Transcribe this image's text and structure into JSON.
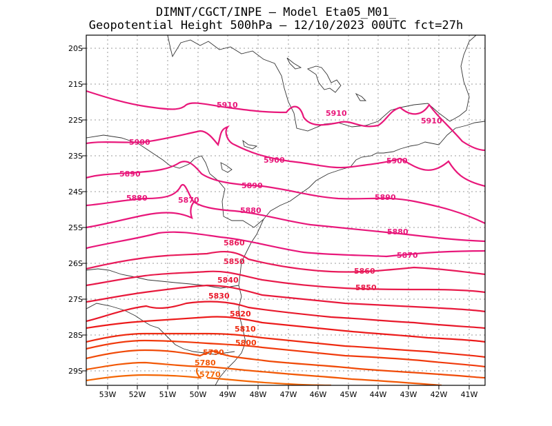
{
  "header": {
    "line1": "DIMNT/CGCT/INPE –  Model Eta05_M01_",
    "line2": "Geopotential Height 500hPa –  12/10/2023 00UTC fct=27h"
  },
  "map": {
    "lat_labels": [
      "20S",
      "21S",
      "22S",
      "23S",
      "24S",
      "25S",
      "26S",
      "27S",
      "28S",
      "29S"
    ],
    "lon_labels": [
      "53W",
      "52W",
      "51W",
      "50W",
      "49W",
      "48W",
      "47W",
      "46W",
      "45W",
      "44W",
      "43W",
      "42W",
      "41W"
    ],
    "contour_labels": [
      {
        "text": "5910",
        "color": "#e8177a"
      },
      {
        "text": "5910",
        "color": "#e8177a"
      },
      {
        "text": "5910",
        "color": "#e8177a"
      },
      {
        "text": "5900",
        "color": "#e8177a"
      },
      {
        "text": "5900",
        "color": "#e8177a"
      },
      {
        "text": "5900",
        "color": "#e8177a"
      },
      {
        "text": "5890",
        "color": "#e8177a"
      },
      {
        "text": "5890",
        "color": "#e8177a"
      },
      {
        "text": "5890",
        "color": "#e8177a"
      },
      {
        "text": "5880",
        "color": "#e8177a"
      },
      {
        "text": "5870",
        "color": "#e8177a"
      },
      {
        "text": "5880",
        "color": "#e8177a"
      },
      {
        "text": "5880",
        "color": "#e8177a"
      },
      {
        "text": "5870",
        "color": "#e8177a"
      },
      {
        "text": "5860",
        "color": "#e81a5a"
      },
      {
        "text": "5860",
        "color": "#e81a5a"
      },
      {
        "text": "5850",
        "color": "#e81a4a"
      },
      {
        "text": "5850",
        "color": "#e81a4a"
      },
      {
        "text": "5840",
        "color": "#e8183a"
      },
      {
        "text": "5830",
        "color": "#e8182a"
      },
      {
        "text": "5820",
        "color": "#ec1a1a"
      },
      {
        "text": "5810",
        "color": "#ee2a10"
      },
      {
        "text": "5800",
        "color": "#f03a0c"
      },
      {
        "text": "5790",
        "color": "#f04a08"
      },
      {
        "text": "5780",
        "color": "#f25806"
      },
      {
        "text": "5770",
        "color": "#f46604"
      }
    ]
  }
}
